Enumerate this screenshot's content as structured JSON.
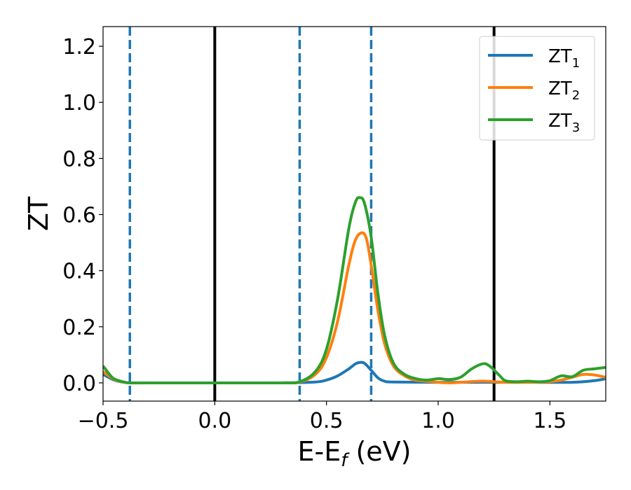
{
  "chart_data": {
    "type": "line",
    "title": "",
    "xlabel": {
      "base": "E-E",
      "sub": "f",
      "rest": " (eV)"
    },
    "ylabel": "ZT",
    "xlim": [
      -0.5,
      1.75
    ],
    "ylim": [
      -0.065,
      1.27
    ],
    "xticks": [
      -0.5,
      0.0,
      0.5,
      1.0,
      1.5
    ],
    "xtick_labels": [
      "−0.5",
      "0.0",
      "0.5",
      "1.0",
      "1.5"
    ],
    "yticks": [
      0.0,
      0.2,
      0.4,
      0.6,
      0.8,
      1.0,
      1.2
    ],
    "ytick_labels": [
      "0.0",
      "0.2",
      "0.4",
      "0.6",
      "0.8",
      "1.0",
      "1.2"
    ],
    "grid": false,
    "legend_position": "upper-right",
    "vertical_lines": [
      {
        "x": -0.38,
        "style": "dashed",
        "color": "#1f77b4"
      },
      {
        "x": 0.0,
        "style": "solid",
        "color": "#000000"
      },
      {
        "x": 0.38,
        "style": "dashed",
        "color": "#1f77b4"
      },
      {
        "x": 0.7,
        "style": "dashed",
        "color": "#1f77b4"
      },
      {
        "x": 1.25,
        "style": "solid",
        "color": "#000000"
      }
    ],
    "series": [
      {
        "name": "ZT",
        "subscript": "1",
        "color": "#1f77b4",
        "x": [
          -0.5,
          -0.45,
          -0.42,
          -0.38,
          -0.3,
          0.0,
          0.3,
          0.45,
          0.5,
          0.55,
          0.6,
          0.63,
          0.65,
          0.67,
          0.7,
          0.73,
          0.76,
          0.8,
          1.0,
          1.25,
          1.4,
          1.6,
          1.7,
          1.75
        ],
        "y": [
          0.03,
          0.01,
          0.004,
          0.0,
          0.0,
          0.0,
          0.0,
          0.003,
          0.01,
          0.025,
          0.05,
          0.068,
          0.073,
          0.07,
          0.045,
          0.018,
          0.006,
          0.003,
          0.002,
          0.002,
          0.002,
          0.002,
          0.008,
          0.015
        ]
      },
      {
        "name": "ZT",
        "subscript": "2",
        "color": "#ff7f0e",
        "x": [
          -0.5,
          -0.45,
          -0.42,
          -0.38,
          -0.3,
          0.0,
          0.3,
          0.38,
          0.45,
          0.5,
          0.55,
          0.6,
          0.63,
          0.66,
          0.68,
          0.7,
          0.73,
          0.76,
          0.8,
          0.85,
          0.9,
          1.0,
          1.05,
          1.1,
          1.2,
          1.3,
          1.4,
          1.5,
          1.55,
          1.6,
          1.65,
          1.7,
          1.75
        ],
        "y": [
          0.04,
          0.012,
          0.005,
          0.0,
          0.0,
          0.0,
          0.0,
          0.003,
          0.03,
          0.09,
          0.22,
          0.42,
          0.51,
          0.535,
          0.51,
          0.42,
          0.26,
          0.14,
          0.06,
          0.025,
          0.01,
          0.002,
          0.0,
          0.002,
          0.006,
          0.002,
          0.002,
          0.004,
          0.01,
          0.02,
          0.03,
          0.028,
          0.02
        ]
      },
      {
        "name": "ZT",
        "subscript": "3",
        "color": "#2ca02c",
        "x": [
          -0.5,
          -0.46,
          -0.43,
          -0.4,
          -0.38,
          -0.3,
          0.0,
          0.3,
          0.38,
          0.45,
          0.5,
          0.55,
          0.6,
          0.63,
          0.65,
          0.67,
          0.7,
          0.73,
          0.76,
          0.8,
          0.85,
          0.9,
          0.95,
          1.0,
          1.05,
          1.1,
          1.15,
          1.2,
          1.23,
          1.27,
          1.3,
          1.35,
          1.4,
          1.45,
          1.5,
          1.55,
          1.6,
          1.65,
          1.7,
          1.75
        ],
        "y": [
          0.06,
          0.02,
          0.008,
          0.002,
          0.0,
          0.0,
          0.0,
          0.0,
          0.004,
          0.04,
          0.12,
          0.3,
          0.55,
          0.645,
          0.66,
          0.64,
          0.52,
          0.32,
          0.17,
          0.07,
          0.03,
          0.015,
          0.01,
          0.015,
          0.012,
          0.02,
          0.05,
          0.068,
          0.06,
          0.03,
          0.008,
          0.004,
          0.006,
          0.004,
          0.008,
          0.025,
          0.022,
          0.045,
          0.05,
          0.055
        ]
      }
    ]
  }
}
